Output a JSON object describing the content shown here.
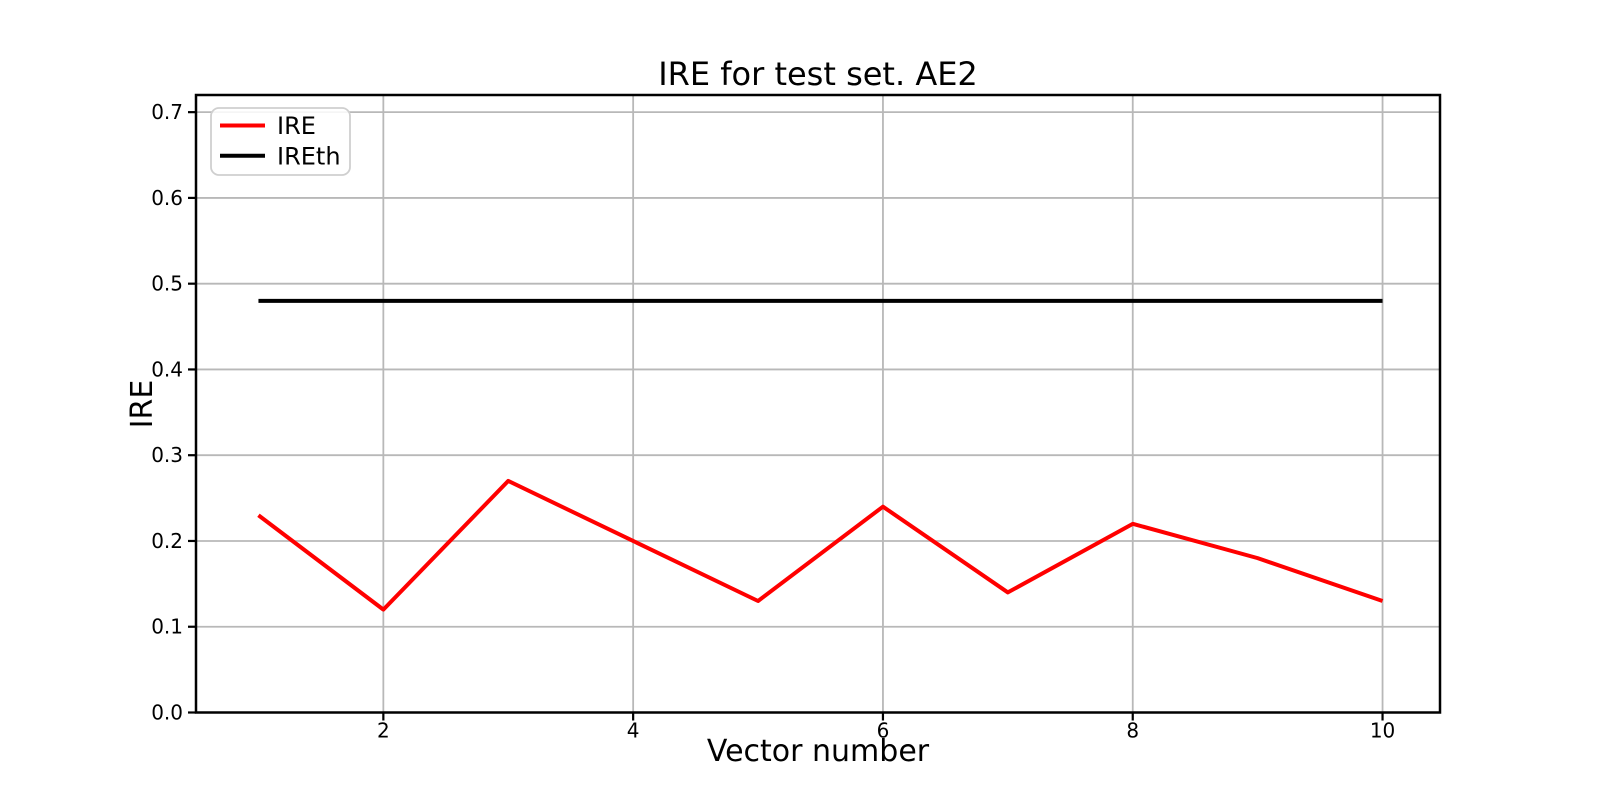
{
  "chart_data": {
    "type": "line",
    "title": "IRE for test set. AE2",
    "xlabel": "Vector number",
    "ylabel": "IRE",
    "x": [
      1,
      2,
      3,
      4,
      5,
      6,
      7,
      8,
      9,
      10
    ],
    "series": [
      {
        "name": "IRE",
        "color": "#ff0000",
        "values": [
          0.23,
          0.12,
          0.27,
          0.2,
          0.13,
          0.24,
          0.14,
          0.22,
          0.18,
          0.13
        ]
      },
      {
        "name": "IREth",
        "color": "#000000",
        "values": [
          0.48,
          0.48,
          0.48,
          0.48,
          0.48,
          0.48,
          0.48,
          0.48,
          0.48,
          0.48
        ]
      }
    ],
    "x_ticks": [
      2,
      4,
      6,
      8,
      10
    ],
    "x_tick_labels": [
      "2",
      "4",
      "6",
      "8",
      "10"
    ],
    "y_ticks": [
      0.0,
      0.1,
      0.2,
      0.3,
      0.4,
      0.5,
      0.6,
      0.7
    ],
    "y_tick_labels": [
      "0.0",
      "0.1",
      "0.2",
      "0.3",
      "0.4",
      "0.5",
      "0.6",
      "0.7"
    ],
    "xlim": [
      0.5,
      10.46
    ],
    "ylim": [
      0,
      0.72
    ],
    "grid": true,
    "grid_color": "#b8b8b8",
    "axis_color": "#000000",
    "plot_bg_color": "#ffffff",
    "legend_position": "upper-left"
  }
}
